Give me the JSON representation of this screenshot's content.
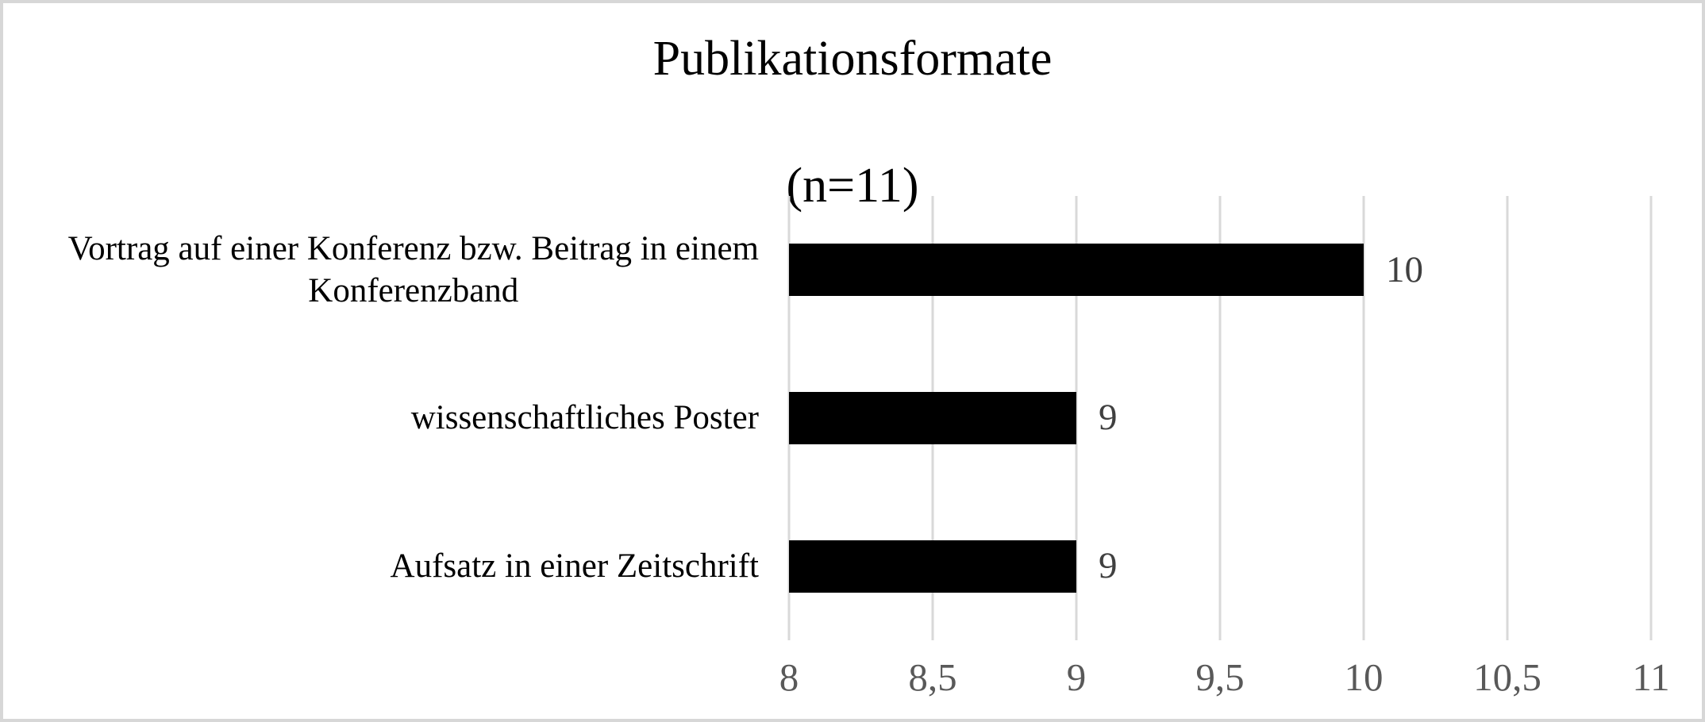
{
  "chart_data": {
    "type": "bar",
    "orientation": "horizontal",
    "title": "Publikationsformate",
    "subtitle": "(n=11)",
    "categories": [
      "Vortrag auf einer Konferenz bzw. Beitrag in einem\nKonferenzband",
      "wissenschaftliches Poster",
      "Aufsatz in einer Zeitschrift"
    ],
    "values": [
      10,
      9,
      9
    ],
    "value_labels": [
      "10",
      "9",
      "9"
    ],
    "xlim": [
      8,
      11
    ],
    "xticks": [
      8,
      8.5,
      9,
      9.5,
      10,
      10.5,
      11
    ],
    "xtick_labels": [
      "8",
      "8,5",
      "9",
      "9,5",
      "10",
      "10,5",
      "11"
    ],
    "ylabel": "",
    "xlabel": "",
    "grid": "vertical",
    "legend": "none",
    "colors": {
      "bar": "#000000",
      "gridline": "#d9d9d9",
      "tick_label": "#595959",
      "data_label": "#404040",
      "title": "#000000",
      "category_label": "#000000",
      "frame_border": "#d7d7d7",
      "background": "#ffffff"
    }
  }
}
